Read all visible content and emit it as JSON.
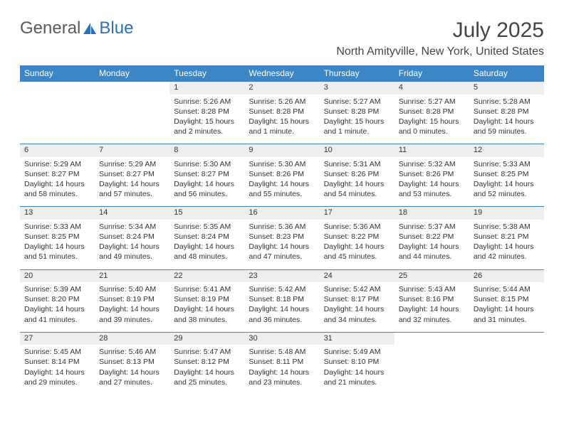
{
  "logo": {
    "general": "General",
    "blue": "Blue"
  },
  "title": "July 2025",
  "location": "North Amityville, New York, United States",
  "colors": {
    "header_bg": "#3d86c6",
    "header_text": "#ffffff",
    "daynum_bg": "#eeeeee",
    "row_border": "#3d86c6",
    "body_text": "#333333",
    "logo_blue": "#2a72b5",
    "logo_gray": "#5a5a5a"
  },
  "weekdays": [
    "Sunday",
    "Monday",
    "Tuesday",
    "Wednesday",
    "Thursday",
    "Friday",
    "Saturday"
  ],
  "weeks": [
    [
      null,
      null,
      {
        "n": "1",
        "sr": "Sunrise: 5:26 AM",
        "ss": "Sunset: 8:28 PM",
        "d1": "Daylight: 15 hours",
        "d2": "and 2 minutes."
      },
      {
        "n": "2",
        "sr": "Sunrise: 5:26 AM",
        "ss": "Sunset: 8:28 PM",
        "d1": "Daylight: 15 hours",
        "d2": "and 1 minute."
      },
      {
        "n": "3",
        "sr": "Sunrise: 5:27 AM",
        "ss": "Sunset: 8:28 PM",
        "d1": "Daylight: 15 hours",
        "d2": "and 1 minute."
      },
      {
        "n": "4",
        "sr": "Sunrise: 5:27 AM",
        "ss": "Sunset: 8:28 PM",
        "d1": "Daylight: 15 hours",
        "d2": "and 0 minutes."
      },
      {
        "n": "5",
        "sr": "Sunrise: 5:28 AM",
        "ss": "Sunset: 8:28 PM",
        "d1": "Daylight: 14 hours",
        "d2": "and 59 minutes."
      }
    ],
    [
      {
        "n": "6",
        "sr": "Sunrise: 5:29 AM",
        "ss": "Sunset: 8:27 PM",
        "d1": "Daylight: 14 hours",
        "d2": "and 58 minutes."
      },
      {
        "n": "7",
        "sr": "Sunrise: 5:29 AM",
        "ss": "Sunset: 8:27 PM",
        "d1": "Daylight: 14 hours",
        "d2": "and 57 minutes."
      },
      {
        "n": "8",
        "sr": "Sunrise: 5:30 AM",
        "ss": "Sunset: 8:27 PM",
        "d1": "Daylight: 14 hours",
        "d2": "and 56 minutes."
      },
      {
        "n": "9",
        "sr": "Sunrise: 5:30 AM",
        "ss": "Sunset: 8:26 PM",
        "d1": "Daylight: 14 hours",
        "d2": "and 55 minutes."
      },
      {
        "n": "10",
        "sr": "Sunrise: 5:31 AM",
        "ss": "Sunset: 8:26 PM",
        "d1": "Daylight: 14 hours",
        "d2": "and 54 minutes."
      },
      {
        "n": "11",
        "sr": "Sunrise: 5:32 AM",
        "ss": "Sunset: 8:26 PM",
        "d1": "Daylight: 14 hours",
        "d2": "and 53 minutes."
      },
      {
        "n": "12",
        "sr": "Sunrise: 5:33 AM",
        "ss": "Sunset: 8:25 PM",
        "d1": "Daylight: 14 hours",
        "d2": "and 52 minutes."
      }
    ],
    [
      {
        "n": "13",
        "sr": "Sunrise: 5:33 AM",
        "ss": "Sunset: 8:25 PM",
        "d1": "Daylight: 14 hours",
        "d2": "and 51 minutes."
      },
      {
        "n": "14",
        "sr": "Sunrise: 5:34 AM",
        "ss": "Sunset: 8:24 PM",
        "d1": "Daylight: 14 hours",
        "d2": "and 49 minutes."
      },
      {
        "n": "15",
        "sr": "Sunrise: 5:35 AM",
        "ss": "Sunset: 8:24 PM",
        "d1": "Daylight: 14 hours",
        "d2": "and 48 minutes."
      },
      {
        "n": "16",
        "sr": "Sunrise: 5:36 AM",
        "ss": "Sunset: 8:23 PM",
        "d1": "Daylight: 14 hours",
        "d2": "and 47 minutes."
      },
      {
        "n": "17",
        "sr": "Sunrise: 5:36 AM",
        "ss": "Sunset: 8:22 PM",
        "d1": "Daylight: 14 hours",
        "d2": "and 45 minutes."
      },
      {
        "n": "18",
        "sr": "Sunrise: 5:37 AM",
        "ss": "Sunset: 8:22 PM",
        "d1": "Daylight: 14 hours",
        "d2": "and 44 minutes."
      },
      {
        "n": "19",
        "sr": "Sunrise: 5:38 AM",
        "ss": "Sunset: 8:21 PM",
        "d1": "Daylight: 14 hours",
        "d2": "and 42 minutes."
      }
    ],
    [
      {
        "n": "20",
        "sr": "Sunrise: 5:39 AM",
        "ss": "Sunset: 8:20 PM",
        "d1": "Daylight: 14 hours",
        "d2": "and 41 minutes."
      },
      {
        "n": "21",
        "sr": "Sunrise: 5:40 AM",
        "ss": "Sunset: 8:19 PM",
        "d1": "Daylight: 14 hours",
        "d2": "and 39 minutes."
      },
      {
        "n": "22",
        "sr": "Sunrise: 5:41 AM",
        "ss": "Sunset: 8:19 PM",
        "d1": "Daylight: 14 hours",
        "d2": "and 38 minutes."
      },
      {
        "n": "23",
        "sr": "Sunrise: 5:42 AM",
        "ss": "Sunset: 8:18 PM",
        "d1": "Daylight: 14 hours",
        "d2": "and 36 minutes."
      },
      {
        "n": "24",
        "sr": "Sunrise: 5:42 AM",
        "ss": "Sunset: 8:17 PM",
        "d1": "Daylight: 14 hours",
        "d2": "and 34 minutes."
      },
      {
        "n": "25",
        "sr": "Sunrise: 5:43 AM",
        "ss": "Sunset: 8:16 PM",
        "d1": "Daylight: 14 hours",
        "d2": "and 32 minutes."
      },
      {
        "n": "26",
        "sr": "Sunrise: 5:44 AM",
        "ss": "Sunset: 8:15 PM",
        "d1": "Daylight: 14 hours",
        "d2": "and 31 minutes."
      }
    ],
    [
      {
        "n": "27",
        "sr": "Sunrise: 5:45 AM",
        "ss": "Sunset: 8:14 PM",
        "d1": "Daylight: 14 hours",
        "d2": "and 29 minutes."
      },
      {
        "n": "28",
        "sr": "Sunrise: 5:46 AM",
        "ss": "Sunset: 8:13 PM",
        "d1": "Daylight: 14 hours",
        "d2": "and 27 minutes."
      },
      {
        "n": "29",
        "sr": "Sunrise: 5:47 AM",
        "ss": "Sunset: 8:12 PM",
        "d1": "Daylight: 14 hours",
        "d2": "and 25 minutes."
      },
      {
        "n": "30",
        "sr": "Sunrise: 5:48 AM",
        "ss": "Sunset: 8:11 PM",
        "d1": "Daylight: 14 hours",
        "d2": "and 23 minutes."
      },
      {
        "n": "31",
        "sr": "Sunrise: 5:49 AM",
        "ss": "Sunset: 8:10 PM",
        "d1": "Daylight: 14 hours",
        "d2": "and 21 minutes."
      },
      null,
      null
    ]
  ]
}
